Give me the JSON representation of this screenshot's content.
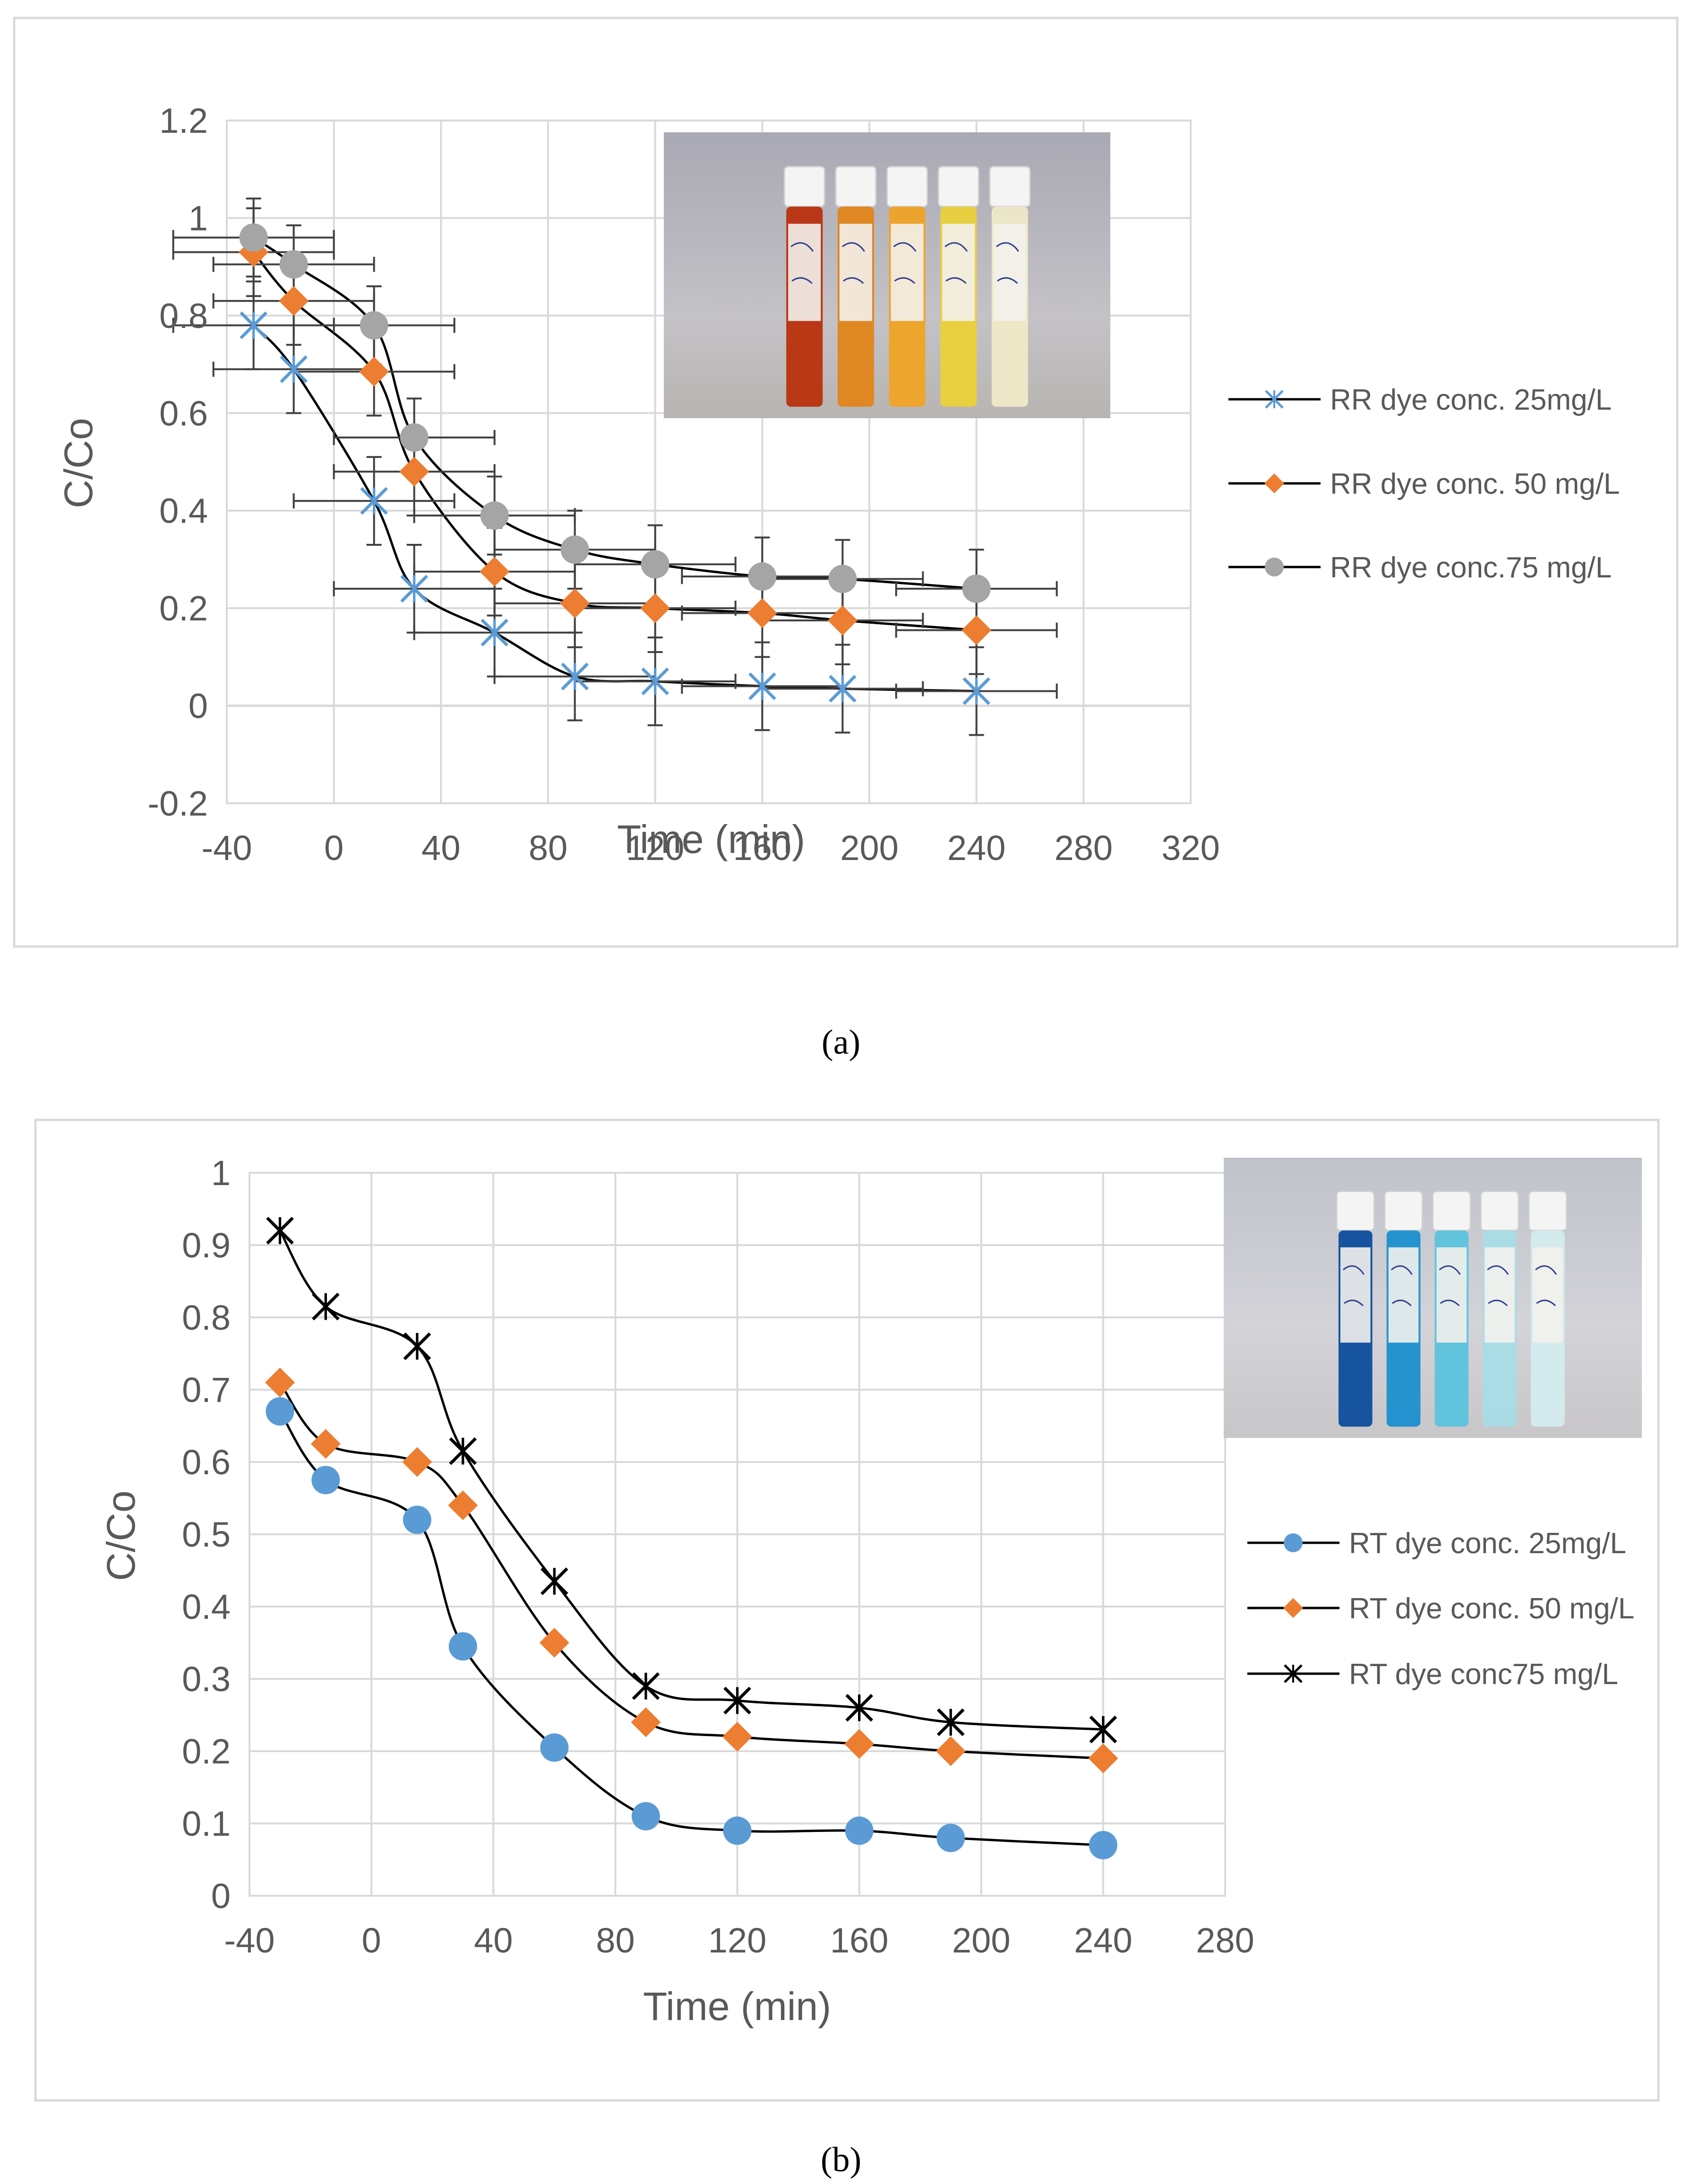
{
  "chart_data": [
    {
      "type": "line",
      "caption": "(a)",
      "xlabel": "Time (min)",
      "ylabel": "C/Co",
      "xlim": [
        -40,
        320
      ],
      "ylim": [
        -0.2,
        1.2
      ],
      "x_ticks": [
        "-40",
        "0",
        "40",
        "80",
        "120",
        "160",
        "200",
        "240",
        "280",
        "320"
      ],
      "y_ticks": [
        "-0.2",
        "0",
        "0.2",
        "0.4",
        "0.6",
        "0.8",
        "1",
        "1.2"
      ],
      "grid": true,
      "legend_position": "right",
      "error_bars": true,
      "inset": "photo of five vials, red-orange to pale yellow",
      "series": [
        {
          "name": "RR dye conc. 25mg/L",
          "marker": "asterisk",
          "color": "#5B9BD5",
          "x": [
            -30,
            -15,
            15,
            30,
            60,
            90,
            120,
            160,
            190,
            240
          ],
          "y": [
            0.78,
            0.69,
            0.42,
            0.24,
            0.15,
            0.06,
            0.05,
            0.04,
            0.035,
            0.03
          ],
          "x_err": 30,
          "y_err": 0.09
        },
        {
          "name": "RR dye conc. 50 mg/L",
          "marker": "diamond",
          "color": "#ED7D31",
          "x": [
            -30,
            -15,
            15,
            30,
            60,
            90,
            120,
            160,
            190,
            240
          ],
          "y": [
            0.93,
            0.83,
            0.685,
            0.48,
            0.275,
            0.21,
            0.2,
            0.19,
            0.175,
            0.155
          ],
          "x_err": 30,
          "y_err": 0.09
        },
        {
          "name": "RR dye conc.75 mg/L",
          "marker": "circle",
          "color": "#A5A5A5",
          "x": [
            -30,
            -15,
            15,
            30,
            60,
            90,
            120,
            160,
            190,
            240
          ],
          "y": [
            0.96,
            0.905,
            0.78,
            0.55,
            0.39,
            0.32,
            0.29,
            0.265,
            0.26,
            0.24
          ],
          "x_err": 30,
          "y_err": 0.08
        }
      ]
    },
    {
      "type": "line",
      "caption": "(b)",
      "xlabel": "Time (min)",
      "ylabel": "C/Co",
      "xlim": [
        -40,
        280
      ],
      "ylim": [
        0,
        1
      ],
      "x_ticks": [
        "-40",
        "0",
        "40",
        "80",
        "120",
        "160",
        "200",
        "240",
        "280"
      ],
      "y_ticks": [
        "0",
        "0.1",
        "0.2",
        "0.3",
        "0.4",
        "0.5",
        "0.6",
        "0.7",
        "0.8",
        "0.9",
        "1"
      ],
      "grid": true,
      "legend_position": "right",
      "inset": "photo of five vials, dark blue to pale blue",
      "series": [
        {
          "name": "RT dye conc. 25mg/L",
          "marker": "circle",
          "color": "#5B9BD5",
          "x": [
            -30,
            -15,
            15,
            30,
            60,
            90,
            120,
            160,
            190,
            240
          ],
          "y": [
            0.67,
            0.575,
            0.52,
            0.345,
            0.205,
            0.11,
            0.09,
            0.09,
            0.08,
            0.07
          ]
        },
        {
          "name": "RT dye conc. 50 mg/L",
          "marker": "diamond",
          "color": "#ED7D31",
          "x": [
            -30,
            -15,
            15,
            30,
            60,
            90,
            120,
            160,
            190,
            240
          ],
          "y": [
            0.71,
            0.625,
            0.6,
            0.54,
            0.35,
            0.24,
            0.22,
            0.21,
            0.2,
            0.19
          ]
        },
        {
          "name": "RT dye conc75 mg/L",
          "marker": "asterisk",
          "color": "#000000",
          "x": [
            -30,
            -15,
            15,
            30,
            60,
            90,
            120,
            160,
            190,
            240
          ],
          "y": [
            0.92,
            0.815,
            0.76,
            0.615,
            0.435,
            0.29,
            0.27,
            0.26,
            0.24,
            0.23
          ]
        }
      ]
    }
  ]
}
